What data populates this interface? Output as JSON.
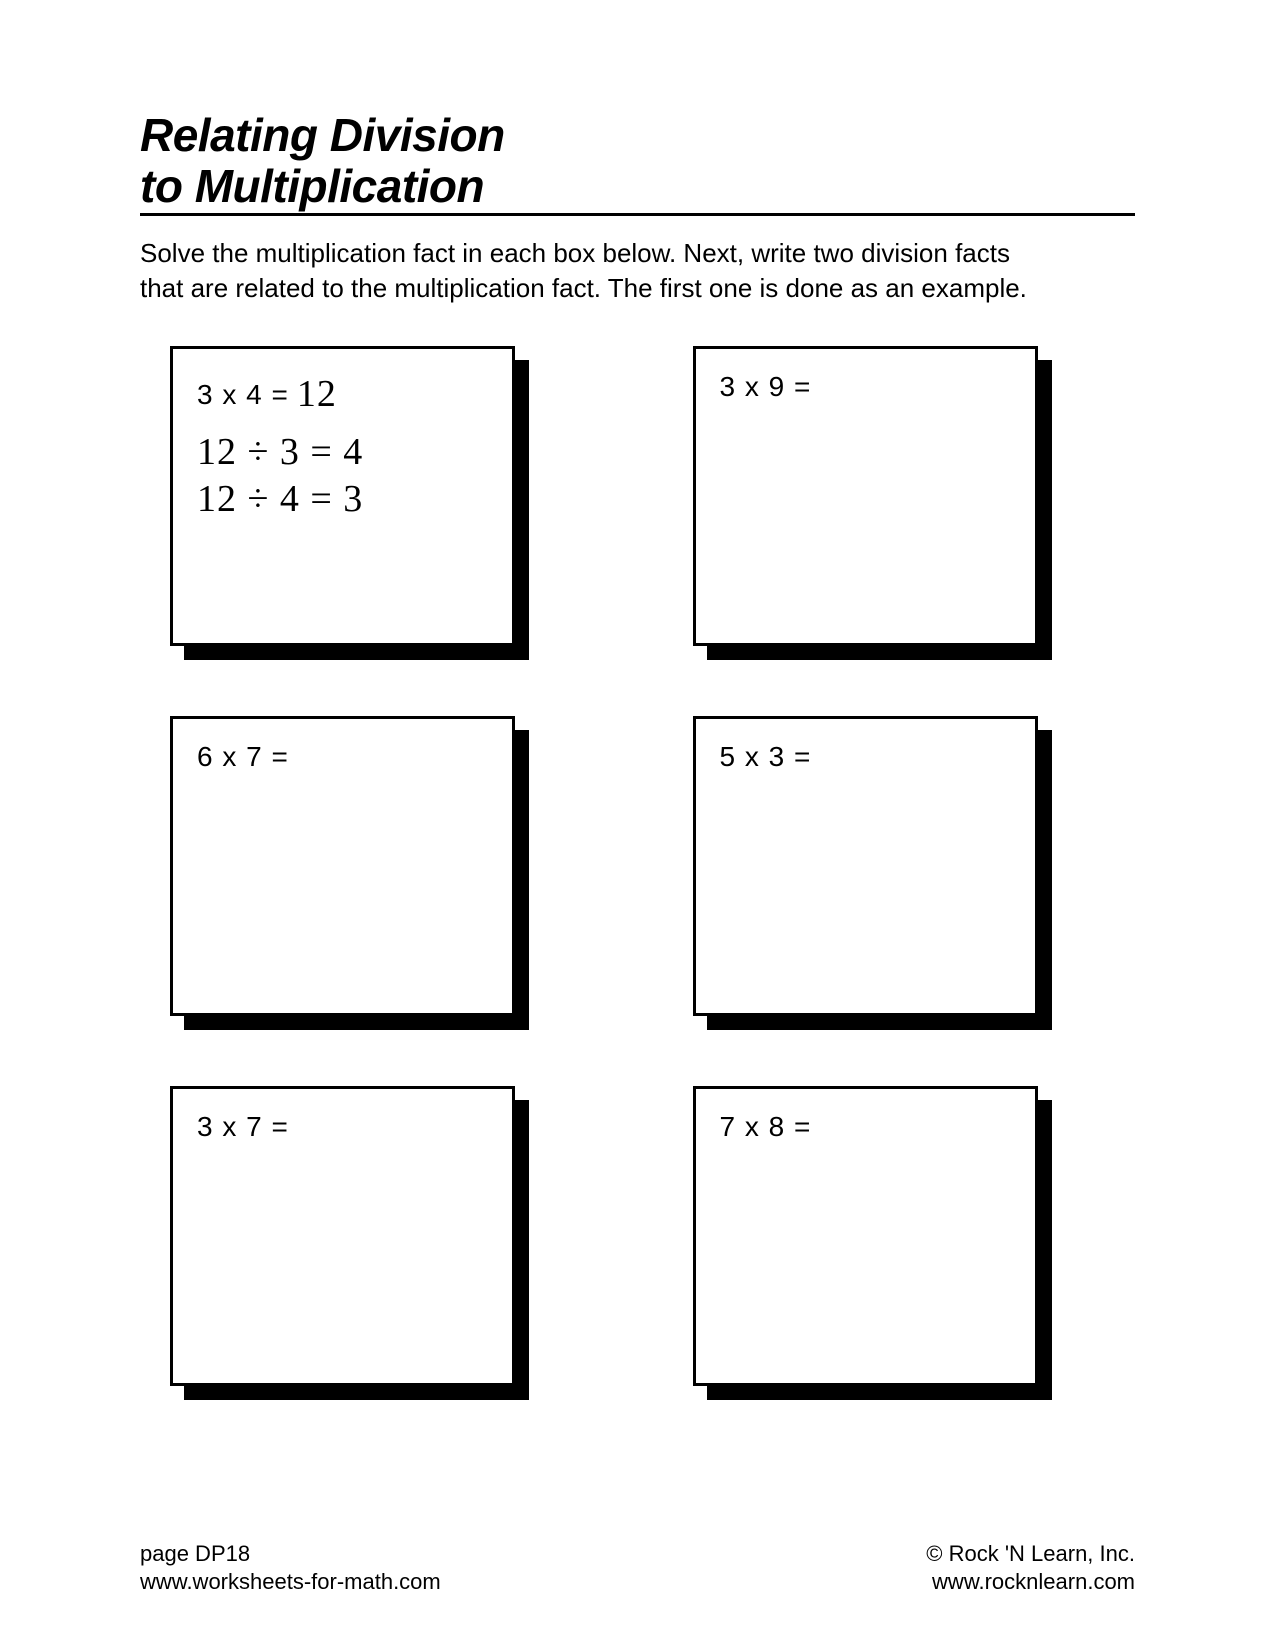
{
  "title_line1": "Relating Division",
  "title_line2": "to Multiplication",
  "instructions": "Solve the multiplication fact in each box below. Next, write two division facts that are related to the multiplication fact. The first one is done as an example.",
  "boxes": [
    {
      "prompt": "3 x 4 =",
      "answer": "12",
      "handwritten": [
        "12 ÷ 3 = 4",
        "12 ÷ 4 = 3"
      ]
    },
    {
      "prompt": "3 x 9 =",
      "answer": "",
      "handwritten": []
    },
    {
      "prompt": "6 x 7 =",
      "answer": "",
      "handwritten": []
    },
    {
      "prompt": "5 x 3 =",
      "answer": "",
      "handwritten": []
    },
    {
      "prompt": "3 x 7 =",
      "answer": "",
      "handwritten": []
    },
    {
      "prompt": "7 x 8 =",
      "answer": "",
      "handwritten": []
    }
  ],
  "footer": {
    "page_label": "page DP18",
    "left_url": "www.worksheets-for-math.com",
    "copyright": "© Rock 'N Learn, Inc.",
    "right_url": "www.rocknlearn.com"
  },
  "colors": {
    "text": "#000000",
    "background": "#ffffff",
    "border": "#000000",
    "shadow": "#000000"
  }
}
